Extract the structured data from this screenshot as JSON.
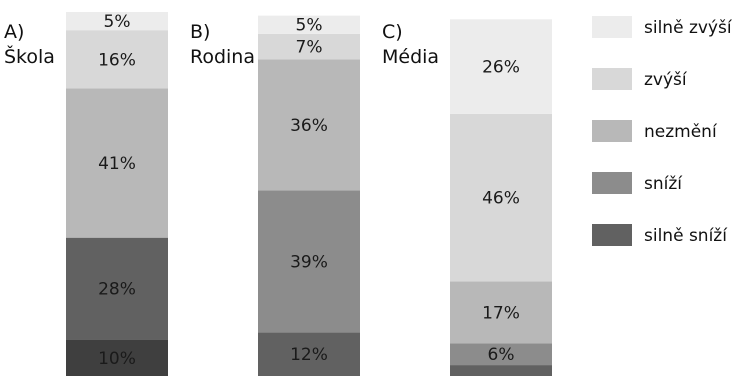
{
  "chart_data": {
    "type": "bar",
    "stacked": true,
    "percent_stacked": true,
    "categories": [
      "Škola",
      "Rodina",
      "Média"
    ],
    "panels": [
      {
        "letter": "A)",
        "name": "Škola"
      },
      {
        "letter": "B)",
        "name": "Rodina"
      },
      {
        "letter": "C)",
        "name": "Média"
      }
    ],
    "series": [
      {
        "name": "silně sníží",
        "color": "#505050",
        "values": [
          10,
          0,
          3
        ]
      },
      {
        "name": "sníží",
        "color": "#616161",
        "values": [
          28,
          12,
          0
        ]
      },
      {
        "name": "sníží",
        "color": "#8c8c8c",
        "values": [
          0,
          39,
          6
        ]
      },
      {
        "name": "nezmění",
        "color": "#b8b8b8",
        "values": [
          41,
          36,
          17
        ]
      },
      {
        "name": "zvýší",
        "color": "#d8d8d8",
        "values": [
          16,
          7,
          46
        ]
      },
      {
        "name": "silně zvýší",
        "color": "#ececec",
        "values": [
          5,
          5,
          26
        ]
      }
    ],
    "bars": [
      {
        "category": "Škola",
        "segments": [
          {
            "value": 10,
            "label": "10%",
            "color": "#3f3f3f"
          },
          {
            "value": 28,
            "label": "28%",
            "color": "#616161"
          },
          {
            "value": 41,
            "label": "41%",
            "color": "#b8b8b8"
          },
          {
            "value": 16,
            "label": "16%",
            "color": "#d8d8d8"
          },
          {
            "value": 5,
            "label": "5%",
            "color": "#ececec"
          }
        ]
      },
      {
        "category": "Rodina",
        "segments": [
          {
            "value": 12,
            "label": "12%",
            "color": "#616161"
          },
          {
            "value": 39,
            "label": "39%",
            "color": "#8c8c8c"
          },
          {
            "value": 36,
            "label": "36%",
            "color": "#b8b8b8"
          },
          {
            "value": 7,
            "label": "7%",
            "color": "#d8d8d8"
          },
          {
            "value": 5,
            "label": "5%",
            "color": "#ececec"
          }
        ]
      },
      {
        "category": "Média",
        "segments": [
          {
            "value": 3,
            "label": "",
            "color": "#616161"
          },
          {
            "value": 6,
            "label": "6%",
            "color": "#8c8c8c"
          },
          {
            "value": 17,
            "label": "17%",
            "color": "#b8b8b8"
          },
          {
            "value": 46,
            "label": "46%",
            "color": "#d8d8d8"
          },
          {
            "value": 26,
            "label": "26%",
            "color": "#ececec"
          }
        ]
      }
    ],
    "legend": [
      {
        "label": "silně zvýší",
        "color": "#ececec"
      },
      {
        "label": "zvýší",
        "color": "#d8d8d8"
      },
      {
        "label": "nezmění",
        "color": "#b8b8b8"
      },
      {
        "label": "sníží",
        "color": "#8c8c8c"
      },
      {
        "label": "silně sníží",
        "color": "#616161"
      }
    ],
    "legend_position": "right",
    "ylim": [
      0,
      100
    ],
    "grid": false
  }
}
